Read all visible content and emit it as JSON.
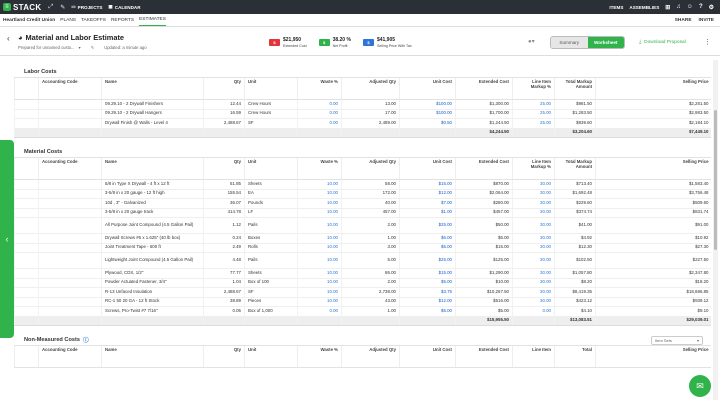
{
  "topbar": {
    "logo": "STACK",
    "items": [
      {
        "icon": "folder-icon",
        "label": "PROJECTS"
      },
      {
        "icon": "calendar-icon",
        "label": "CALENDAR"
      }
    ],
    "right_items": [
      "ITEMS",
      "ASSEMBLIES"
    ]
  },
  "subbar": {
    "project": "Heartland Credit Union",
    "tabs": [
      "PLANS",
      "TAKEOFFS",
      "REPORTS",
      "ESTIMATES"
    ],
    "active_tab": "ESTIMATES",
    "right": [
      "SHARE",
      "INVITE"
    ]
  },
  "header": {
    "title": "Material and Labor Estimate",
    "prepared_for": "Prepared for unnamed custo...",
    "updated": "Updated: a minute ago",
    "metrics": [
      {
        "value": "$21,950",
        "label": "Extended Cost",
        "color": "#e0353b"
      },
      {
        "value": "38.20 %",
        "label": "Net Profit",
        "color": "#2fb34a"
      },
      {
        "value": "$41,905",
        "label": "Selling Price With Tax",
        "color": "#2b76d6"
      }
    ],
    "view_toggle": {
      "summary": "Summary",
      "worksheet": "Worksheet"
    },
    "download": "Download Proposal"
  },
  "columns": [
    "Accounting Code",
    "Name",
    "Qty",
    "Unit",
    "Waste %",
    "Adjusted Qty",
    "Unit Cost",
    "Extended Cost",
    "Line Item Markup %",
    "Total Markup Amount",
    "Selling Price"
  ],
  "labor": {
    "title": "Labor Costs",
    "rows": [
      {
        "code": "",
        "name": "09.29.10 - 2 Drywall Finishers",
        "qty": "12.44",
        "unit": "Crew Hours",
        "waste": "0.00",
        "adj": "13.00",
        "ucost": "$100.00",
        "ext": "$1,300.00",
        "markup": "25.00",
        "tmark": "$981.50",
        "sell": "$2,281.50"
      },
      {
        "code": "",
        "name": "09.29.10 - 2 Drywall Hangers",
        "qty": "16.59",
        "unit": "Crew Hours",
        "waste": "0.00",
        "adj": "17.00",
        "ucost": "$100.00",
        "ext": "$1,700.00",
        "markup": "25.00",
        "tmark": "$1,283.50",
        "sell": "$2,983.50"
      },
      {
        "code": "",
        "name": "Drywall Finish @ Walls - Level 4",
        "qty": "2,488.67",
        "unit": "SF",
        "waste": "0.00",
        "adj": "2,489.00",
        "ucost": "$0.50",
        "ext": "$1,244.50",
        "markup": "25.00",
        "tmark": "$939.60",
        "sell": "$2,184.10"
      }
    ],
    "total": {
      "ext": "$4,244.50",
      "tmark": "$3,204.60",
      "sell": "$7,449.10"
    }
  },
  "material": {
    "title": "Material Costs",
    "rows": [
      {
        "name": "5/8 in Type X Drywall - 4 ft x 12 ft",
        "qty": "51.85",
        "unit": "Sheets",
        "waste": "10.00",
        "adj": "58.00",
        "ucost": "$15.00",
        "ext": "$870.00",
        "markup": "30.00",
        "tmark": "$713.40",
        "sell": "$1,583.40"
      },
      {
        "name": "3-5/8 in x 20 gauge - 12 ft high",
        "qty": "155.54",
        "unit": "EA",
        "waste": "10.00",
        "adj": "172.00",
        "ucost": "$12.00",
        "ext": "$2,064.00",
        "markup": "30.00",
        "tmark": "$1,692.48",
        "sell": "$3,756.48"
      },
      {
        "name": "10d , 3\" - Galvanized",
        "qty": "36.07",
        "unit": "Pounds",
        "waste": "10.00",
        "adj": "40.00",
        "ucost": "$7.00",
        "ext": "$280.00",
        "markup": "30.00",
        "tmark": "$229.60",
        "sell": "$509.60"
      },
      {
        "name": "3-5/8 in x 20 gauge track",
        "qty": "414.78",
        "unit": "LF",
        "waste": "10.00",
        "adj": "457.00",
        "ucost": "$1.00",
        "ext": "$457.00",
        "markup": "30.00",
        "tmark": "$374.74",
        "sell": "$831.74"
      },
      {
        "name": "All Purpose Joint Compound (4.5 Gallon Pail)",
        "qty": "1.12",
        "unit": "Pails",
        "waste": "10.00",
        "adj": "2.00",
        "ucost": "$25.00",
        "ext": "$50.00",
        "markup": "30.00",
        "tmark": "$41.00",
        "sell": "$91.00",
        "tall": true
      },
      {
        "name": "Drywall Screws #6 x 1.625\" (40 lb box)",
        "qty": "0.24",
        "unit": "Boxes",
        "waste": "10.00",
        "adj": "1.00",
        "ucost": "$6.00",
        "ext": "$6.00",
        "markup": "30.00",
        "tmark": "$4.92",
        "sell": "$10.92"
      },
      {
        "name": "Joint Treatment Tape - 500 ft",
        "qty": "2.49",
        "unit": "Rolls",
        "waste": "10.00",
        "adj": "3.00",
        "ucost": "$5.00",
        "ext": "$15.00",
        "markup": "30.00",
        "tmark": "$12.30",
        "sell": "$27.30"
      },
      {
        "name": "Lightweight Joint Compound (4.5 Gallon Pail)",
        "qty": "4.48",
        "unit": "Pails",
        "waste": "10.00",
        "adj": "5.00",
        "ucost": "$25.00",
        "ext": "$125.00",
        "markup": "30.00",
        "tmark": "$102.50",
        "sell": "$227.50",
        "tall": true
      },
      {
        "name": "Plywood, CDX, 1/2\"",
        "qty": "77.77",
        "unit": "Sheets",
        "waste": "10.00",
        "adj": "86.00",
        "ucost": "$15.00",
        "ext": "$1,290.00",
        "markup": "30.00",
        "tmark": "$1,057.80",
        "sell": "$2,347.80"
      },
      {
        "name": "Powder Actuated Fastener, 3/4\"",
        "qty": "1.04",
        "unit": "Box of 100",
        "waste": "10.00",
        "adj": "2.00",
        "ucost": "$5.00",
        "ext": "$10.00",
        "markup": "30.00",
        "tmark": "$8.20",
        "sell": "$18.20"
      },
      {
        "name": "R-13 Unfaced Insulation",
        "qty": "2,488.67",
        "unit": "SF",
        "waste": "10.00",
        "adj": "2,738.00",
        "ucost": "$3.75",
        "ext": "$10,267.50",
        "markup": "30.00",
        "tmark": "$8,419.35",
        "sell": "$18,686.85"
      },
      {
        "name": "RC-1 50 20 GA - 12 ft Stock",
        "qty": "38.89",
        "unit": "Pieces",
        "waste": "10.00",
        "adj": "43.00",
        "ucost": "$12.00",
        "ext": "$516.00",
        "markup": "30.00",
        "tmark": "$423.12",
        "sell": "$939.12"
      },
      {
        "name": "Screws, Pro-Twist #7 7/16\"",
        "qty": "0.05",
        "unit": "Box of 1,000",
        "waste": "0.00",
        "adj": "1.00",
        "ucost": "$5.00",
        "ext": "$5.00",
        "markup": "0.00",
        "tmark": "$4.10",
        "sell": "$9.10"
      }
    ],
    "total": {
      "ext": "$15,955.50",
      "tmark": "$13,083.51",
      "sell": "$29,039.01"
    }
  },
  "nonmeasured": {
    "title": "Non-Measured Costs",
    "select": "Item Sets",
    "columns": [
      "Accounting Code",
      "Name",
      "Qty",
      "Unit",
      "Waste %",
      "Adjusted Qty",
      "Unit Cost",
      "Extended Cost",
      "Line Item",
      "Total",
      "Selling Price"
    ]
  }
}
